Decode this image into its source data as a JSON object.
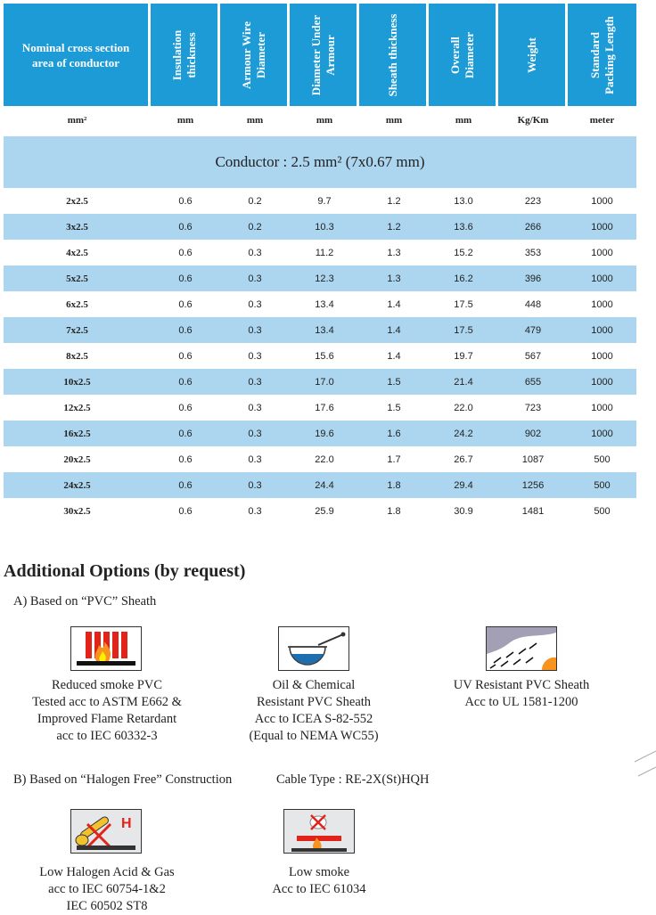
{
  "table": {
    "headers": [
      [
        "Nominal cross section",
        "area of conductor"
      ],
      [
        "Insulation",
        "thickness"
      ],
      [
        "Armour Wire",
        "Diameter"
      ],
      [
        "Diameter Under",
        "Armour"
      ],
      [
        "Sheath thickness"
      ],
      [
        "Overall",
        "Diameter"
      ],
      [
        "Weight"
      ],
      [
        "Standard",
        "Packing Length"
      ]
    ],
    "units": [
      "mm²",
      "mm",
      "mm",
      "mm",
      "mm",
      "mm",
      "Kg/Km",
      "meter"
    ],
    "conductor_band": "Conductor : 2.5 mm² (7x0.67 mm)",
    "rows": [
      [
        "2x2.5",
        "0.6",
        "0.2",
        "9.7",
        "1.2",
        "13.0",
        "223",
        "1000"
      ],
      [
        "3x2.5",
        "0.6",
        "0.2",
        "10.3",
        "1.2",
        "13.6",
        "266",
        "1000"
      ],
      [
        "4x2.5",
        "0.6",
        "0.3",
        "11.2",
        "1.3",
        "15.2",
        "353",
        "1000"
      ],
      [
        "5x2.5",
        "0.6",
        "0.3",
        "12.3",
        "1.3",
        "16.2",
        "396",
        "1000"
      ],
      [
        "6x2.5",
        "0.6",
        "0.3",
        "13.4",
        "1.4",
        "17.5",
        "448",
        "1000"
      ],
      [
        "7x2.5",
        "0.6",
        "0.3",
        "13.4",
        "1.4",
        "17.5",
        "479",
        "1000"
      ],
      [
        "8x2.5",
        "0.6",
        "0.3",
        "15.6",
        "1.4",
        "19.7",
        "567",
        "1000"
      ],
      [
        "10x2.5",
        "0.6",
        "0.3",
        "17.0",
        "1.5",
        "21.4",
        "655",
        "1000"
      ],
      [
        "12x2.5",
        "0.6",
        "0.3",
        "17.6",
        "1.5",
        "22.0",
        "723",
        "1000"
      ],
      [
        "16x2.5",
        "0.6",
        "0.3",
        "19.6",
        "1.6",
        "24.2",
        "902",
        "1000"
      ],
      [
        "20x2.5",
        "0.6",
        "0.3",
        "22.0",
        "1.7",
        "26.7",
        "1087",
        "500"
      ],
      [
        "24x2.5",
        "0.6",
        "0.3",
        "24.4",
        "1.8",
        "29.4",
        "1256",
        "500"
      ],
      [
        "30x2.5",
        "0.6",
        "0.3",
        "25.9",
        "1.8",
        "30.9",
        "1481",
        "500"
      ]
    ]
  },
  "options": {
    "title": "Additional Options (by request)",
    "section_a": "A) Based on “PVC” Sheath",
    "section_a_items": [
      {
        "icon": "reduced-smoke-flame-icon",
        "lines": [
          "Reduced smoke PVC",
          "Tested acc to ASTM E662 &",
          "Improved Flame Retardant",
          "acc to IEC 60332-3"
        ]
      },
      {
        "icon": "oil-chemical-icon",
        "lines": [
          "Oil & Chemical",
          "Resistant PVC Sheath",
          "Acc to ICEA S-82-552",
          "(Equal to NEMA WC55)"
        ]
      },
      {
        "icon": "uv-sun-icon",
        "lines": [
          "UV Resistant PVC Sheath",
          "Acc to UL 1581-1200"
        ]
      }
    ],
    "section_b": "B) Based on “Halogen Free” Construction",
    "cable_type": "Cable Type : RE-2X(St)HQH",
    "section_b_items": [
      {
        "icon": "low-halogen-acid-icon",
        "lines": [
          "Low Halogen Acid & Gas",
          "acc to IEC 60754-1&2",
          "IEC 60502 ST8"
        ]
      },
      {
        "icon": "low-smoke-icon",
        "lines": [
          "Low smoke",
          "Acc to IEC 61034"
        ]
      }
    ],
    "halogen_letter": "H"
  },
  "colors": {
    "header_blue": "#1d9bd6",
    "band_blue": "#acd6ef"
  }
}
